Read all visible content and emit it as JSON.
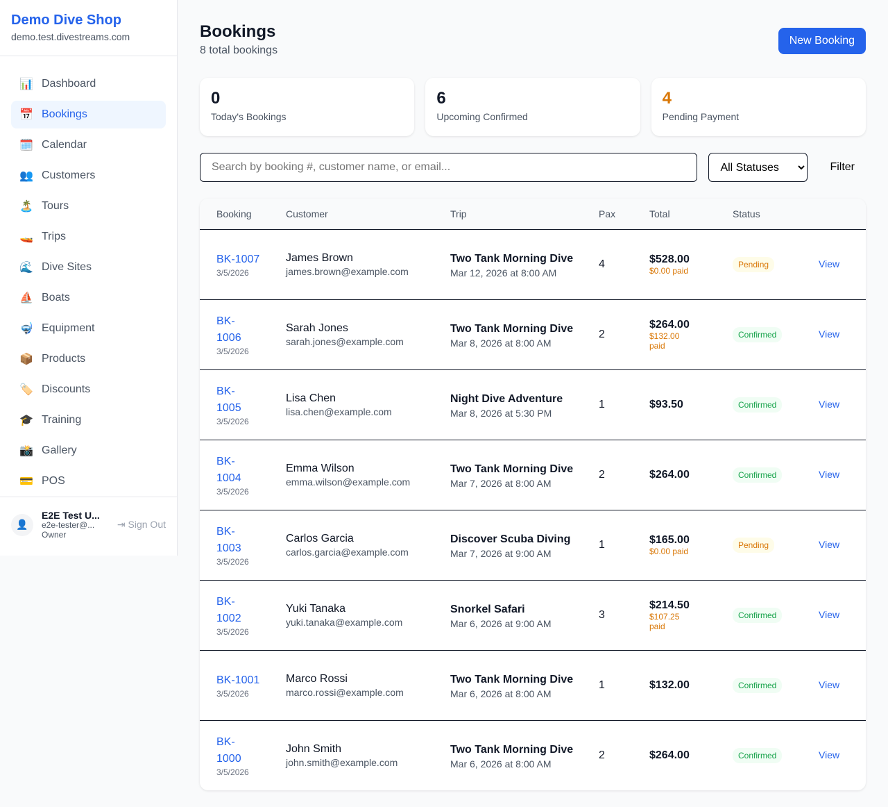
{
  "sidebar": {
    "shop_name": "Demo Dive Shop",
    "domain": "demo.test.divestreams.com",
    "items": [
      {
        "label": "Dashboard",
        "icon": "📊"
      },
      {
        "label": "Bookings",
        "icon": "📅",
        "active": true
      },
      {
        "label": "Calendar",
        "icon": "🗓️"
      },
      {
        "label": "Customers",
        "icon": "👥"
      },
      {
        "label": "Tours",
        "icon": "🏝️"
      },
      {
        "label": "Trips",
        "icon": "🚤"
      },
      {
        "label": "Dive Sites",
        "icon": "🌊"
      },
      {
        "label": "Boats",
        "icon": "⛵"
      },
      {
        "label": "Equipment",
        "icon": "🤿"
      },
      {
        "label": "Products",
        "icon": "📦"
      },
      {
        "label": "Discounts",
        "icon": "🏷️"
      },
      {
        "label": "Training",
        "icon": "🎓"
      },
      {
        "label": "Gallery",
        "icon": "📸"
      },
      {
        "label": "POS",
        "icon": "💳"
      }
    ],
    "user": {
      "name": "E2E Test U...",
      "email": "e2e-tester@...",
      "role": "Owner",
      "sign_out": "Sign Out"
    }
  },
  "header": {
    "title": "Bookings",
    "subtitle": "8 total bookings",
    "new_button": "New Booking"
  },
  "stats": [
    {
      "value": "0",
      "label": "Today's Bookings",
      "color": "#111827"
    },
    {
      "value": "6",
      "label": "Upcoming Confirmed",
      "color": "#111827"
    },
    {
      "value": "4",
      "label": "Pending Payment",
      "color": "#d97706"
    }
  ],
  "filters": {
    "search_placeholder": "Search by booking #, customer name, or email...",
    "status_selected": "All Statuses",
    "filter_label": "Filter"
  },
  "table": {
    "headers": [
      "Booking",
      "Customer",
      "Trip",
      "Pax",
      "Total",
      "Status",
      ""
    ],
    "rows": [
      {
        "id": "BK-1007",
        "date": "3/5/2026",
        "name": "James Brown",
        "email": "james.brown@example.com",
        "trip": "Two Tank Morning Dive",
        "when": "Mar 12, 2026 at 8:00 AM",
        "pax": "4",
        "total": "$528.00",
        "paid": "$0.00 paid",
        "status": "Pending",
        "view": "View"
      },
      {
        "id": "BK-1006",
        "date": "3/5/2026",
        "name": "Sarah Jones",
        "email": "sarah.jones@example.com",
        "trip": "Two Tank Morning Dive",
        "when": "Mar 8, 2026 at 8:00 AM",
        "pax": "2",
        "total": "$264.00",
        "paid": "$132.00 paid",
        "status": "Confirmed",
        "view": "View"
      },
      {
        "id": "BK-1005",
        "date": "3/5/2026",
        "name": "Lisa Chen",
        "email": "lisa.chen@example.com",
        "trip": "Night Dive Adventure",
        "when": "Mar 8, 2026 at 5:30 PM",
        "pax": "1",
        "total": "$93.50",
        "paid": "",
        "status": "Confirmed",
        "view": "View"
      },
      {
        "id": "BK-1004",
        "date": "3/5/2026",
        "name": "Emma Wilson",
        "email": "emma.wilson@example.com",
        "trip": "Two Tank Morning Dive",
        "when": "Mar 7, 2026 at 8:00 AM",
        "pax": "2",
        "total": "$264.00",
        "paid": "",
        "status": "Confirmed",
        "view": "View"
      },
      {
        "id": "BK-1003",
        "date": "3/5/2026",
        "name": "Carlos Garcia",
        "email": "carlos.garcia@example.com",
        "trip": "Discover Scuba Diving",
        "when": "Mar 7, 2026 at 9:00 AM",
        "pax": "1",
        "total": "$165.00",
        "paid": "$0.00 paid",
        "status": "Pending",
        "view": "View"
      },
      {
        "id": "BK-1002",
        "date": "3/5/2026",
        "name": "Yuki Tanaka",
        "email": "yuki.tanaka@example.com",
        "trip": "Snorkel Safari",
        "when": "Mar 6, 2026 at 9:00 AM",
        "pax": "3",
        "total": "$214.50",
        "paid": "$107.25 paid",
        "status": "Confirmed",
        "view": "View"
      },
      {
        "id": "BK-1001",
        "date": "3/5/2026",
        "name": "Marco Rossi",
        "email": "marco.rossi@example.com",
        "trip": "Two Tank Morning Dive",
        "when": "Mar 6, 2026 at 8:00 AM",
        "pax": "1",
        "total": "$132.00",
        "paid": "",
        "status": "Confirmed",
        "view": "View"
      },
      {
        "id": "BK-1000",
        "date": "3/5/2026",
        "name": "John Smith",
        "email": "john.smith@example.com",
        "trip": "Two Tank Morning Dive",
        "when": "Mar 6, 2026 at 8:00 AM",
        "pax": "2",
        "total": "$264.00",
        "paid": "",
        "status": "Confirmed",
        "view": "View"
      }
    ]
  }
}
